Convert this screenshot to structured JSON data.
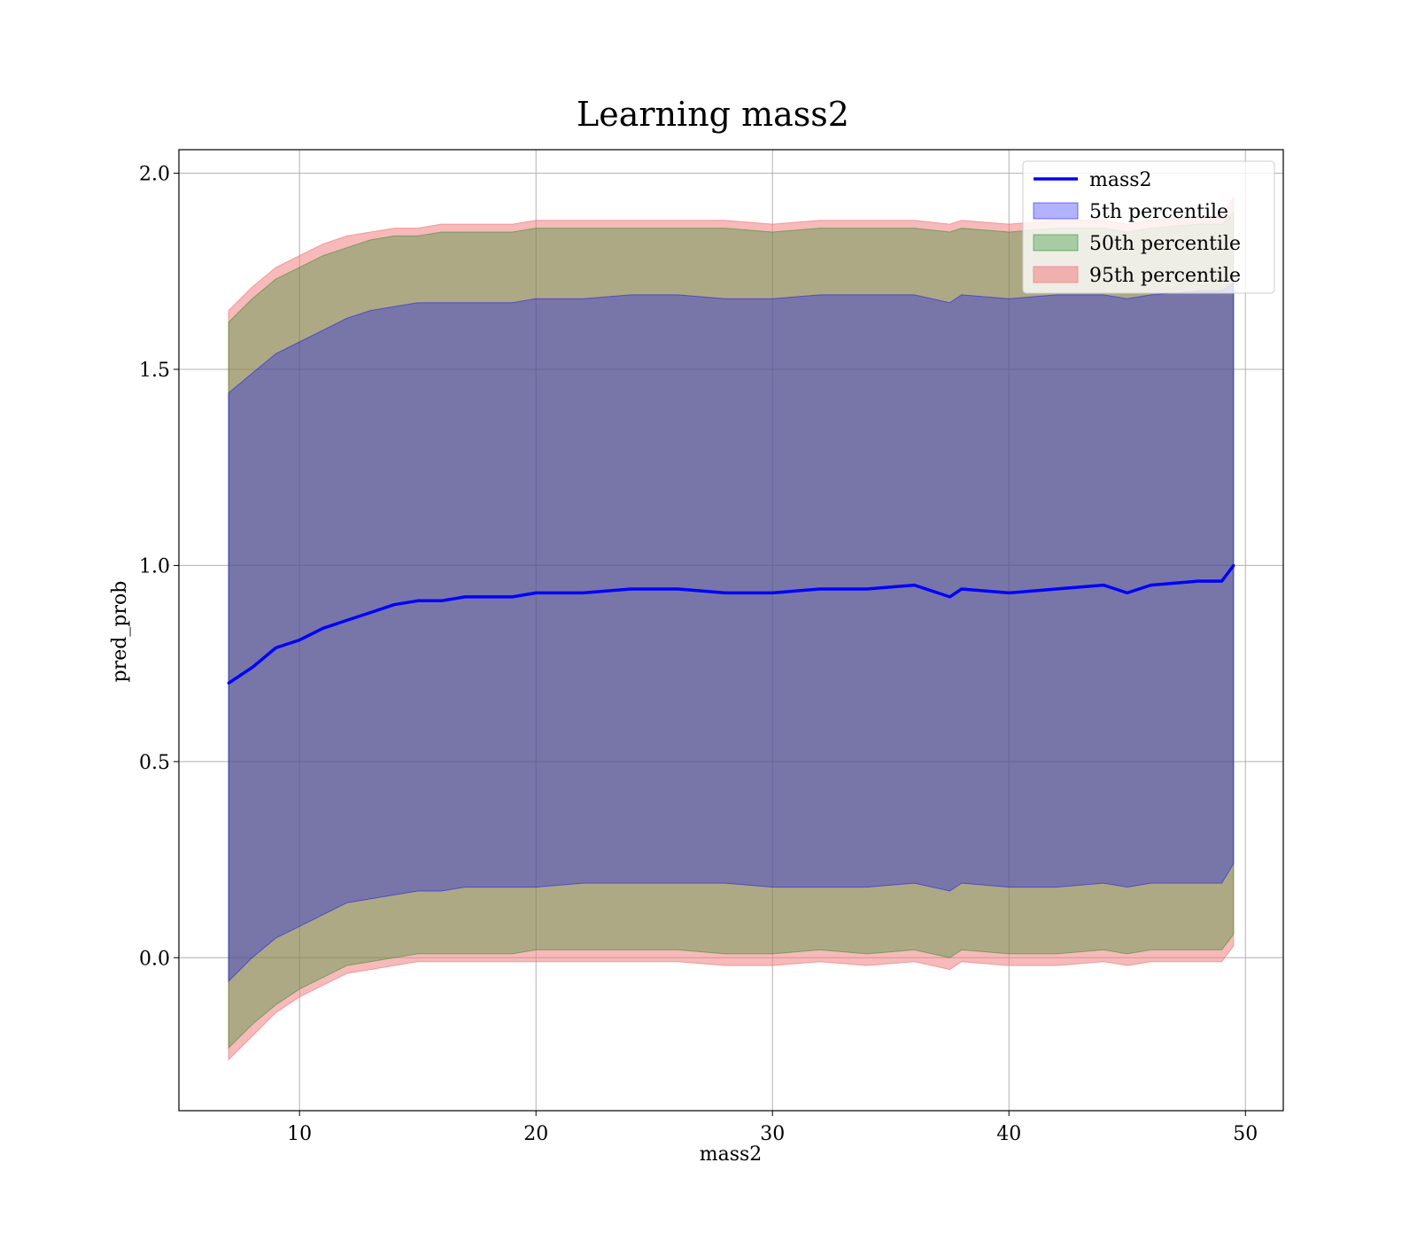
{
  "chart_data": {
    "type": "line",
    "title": "Learning mass2",
    "xlabel": "mass2",
    "ylabel": "pred_prob",
    "xlim": [
      4.9,
      51.6
    ],
    "ylim": [
      -0.39,
      2.06
    ],
    "xticks": [
      10,
      20,
      30,
      40,
      50
    ],
    "yticks": [
      0.0,
      0.5,
      1.0,
      1.5,
      2.0
    ],
    "xtick_labels": [
      "10",
      "20",
      "30",
      "40",
      "50"
    ],
    "ytick_labels": [
      "0.0",
      "0.5",
      "1.0",
      "1.5",
      "2.0"
    ],
    "grid": true,
    "legend_position": "top-right",
    "x": [
      7.0,
      8.0,
      9.0,
      10.0,
      11.0,
      12.0,
      13.0,
      14.0,
      15.0,
      16.0,
      17.0,
      18.0,
      19.0,
      20.0,
      22.0,
      24.0,
      26.0,
      28.0,
      30.0,
      32.0,
      34.0,
      36.0,
      37.5,
      38.0,
      40.0,
      42.0,
      44.0,
      45.0,
      46.0,
      48.0,
      49.0,
      49.5
    ],
    "series": [
      {
        "name": "mass2",
        "kind": "line",
        "color": "#0000ff",
        "values": [
          0.7,
          0.74,
          0.79,
          0.81,
          0.84,
          0.86,
          0.88,
          0.9,
          0.91,
          0.91,
          0.92,
          0.92,
          0.92,
          0.93,
          0.93,
          0.94,
          0.94,
          0.93,
          0.93,
          0.94,
          0.94,
          0.95,
          0.92,
          0.94,
          0.93,
          0.94,
          0.95,
          0.93,
          0.95,
          0.96,
          0.96,
          1.0
        ]
      },
      {
        "name": "5th percentile",
        "kind": "band",
        "color": "#0000ff",
        "opacity": 0.3,
        "lower": [
          -0.06,
          0.0,
          0.05,
          0.08,
          0.11,
          0.14,
          0.15,
          0.16,
          0.17,
          0.17,
          0.18,
          0.18,
          0.18,
          0.18,
          0.19,
          0.19,
          0.19,
          0.19,
          0.18,
          0.18,
          0.18,
          0.19,
          0.17,
          0.19,
          0.18,
          0.18,
          0.19,
          0.18,
          0.19,
          0.19,
          0.19,
          0.24
        ],
        "upper": [
          1.44,
          1.49,
          1.54,
          1.57,
          1.6,
          1.63,
          1.65,
          1.66,
          1.67,
          1.67,
          1.67,
          1.67,
          1.67,
          1.68,
          1.68,
          1.69,
          1.69,
          1.68,
          1.68,
          1.69,
          1.69,
          1.69,
          1.67,
          1.69,
          1.68,
          1.69,
          1.69,
          1.68,
          1.69,
          1.7,
          1.7,
          1.72
        ]
      },
      {
        "name": "50th percentile",
        "kind": "band",
        "color": "#228b22",
        "opacity": 0.35,
        "lower": [
          -0.23,
          -0.17,
          -0.12,
          -0.08,
          -0.05,
          -0.02,
          -0.01,
          0.0,
          0.01,
          0.01,
          0.01,
          0.01,
          0.01,
          0.02,
          0.02,
          0.02,
          0.02,
          0.01,
          0.01,
          0.02,
          0.01,
          0.02,
          0.0,
          0.02,
          0.01,
          0.01,
          0.02,
          0.01,
          0.02,
          0.02,
          0.02,
          0.06
        ],
        "upper": [
          1.62,
          1.68,
          1.73,
          1.76,
          1.79,
          1.81,
          1.83,
          1.84,
          1.84,
          1.85,
          1.85,
          1.85,
          1.85,
          1.86,
          1.86,
          1.86,
          1.86,
          1.86,
          1.85,
          1.86,
          1.86,
          1.86,
          1.85,
          1.86,
          1.85,
          1.86,
          1.86,
          1.85,
          1.86,
          1.87,
          1.87,
          1.9
        ]
      },
      {
        "name": "95th percentile",
        "kind": "band",
        "color": "#f08080",
        "opacity": 0.55,
        "lower": [
          -0.26,
          -0.2,
          -0.14,
          -0.1,
          -0.07,
          -0.04,
          -0.03,
          -0.02,
          -0.01,
          -0.01,
          -0.01,
          -0.01,
          -0.01,
          -0.01,
          -0.01,
          -0.01,
          -0.01,
          -0.02,
          -0.02,
          -0.01,
          -0.02,
          -0.01,
          -0.03,
          -0.01,
          -0.02,
          -0.02,
          -0.01,
          -0.02,
          -0.01,
          -0.01,
          -0.01,
          0.03
        ],
        "upper": [
          1.65,
          1.71,
          1.76,
          1.79,
          1.82,
          1.84,
          1.85,
          1.86,
          1.86,
          1.87,
          1.87,
          1.87,
          1.87,
          1.88,
          1.88,
          1.88,
          1.88,
          1.88,
          1.87,
          1.88,
          1.88,
          1.88,
          1.87,
          1.88,
          1.87,
          1.88,
          1.88,
          1.87,
          1.88,
          1.89,
          1.89,
          1.94
        ]
      }
    ]
  }
}
